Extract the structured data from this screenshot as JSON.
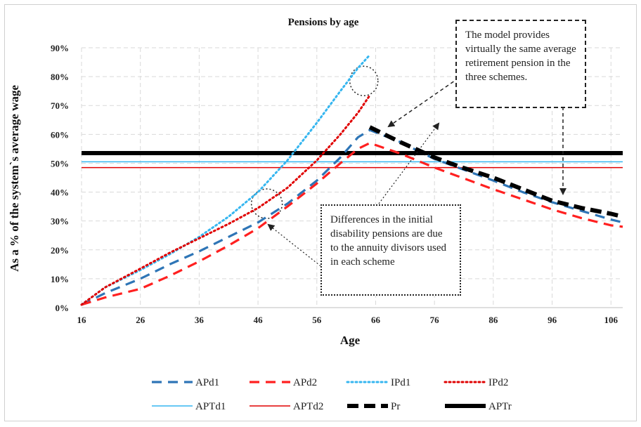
{
  "chart_data": {
    "type": "line",
    "title": "Pensions by age",
    "xlabel": "Age",
    "ylabel": "As a % of the system`s average wage",
    "xticks": [
      "16",
      "26",
      "36",
      "46",
      "56",
      "66",
      "76",
      "86",
      "96",
      "106"
    ],
    "yticks": [
      "0%",
      "10%",
      "20%",
      "30%",
      "40%",
      "50%",
      "60%",
      "70%",
      "80%",
      "90%"
    ],
    "xlim": [
      16,
      108
    ],
    "ylim": [
      0,
      90
    ],
    "grid": true,
    "legend_position": "bottom",
    "series": [
      {
        "name": "APd1",
        "color": "#2e75b6",
        "style": "dashed",
        "x": [
          16,
          20,
          26,
          31,
          36,
          41,
          46,
          51,
          56,
          60,
          63,
          65,
          70,
          76,
          80,
          86,
          91,
          96,
          101,
          106,
          108
        ],
        "y": [
          1,
          5,
          10,
          15,
          19.5,
          24.5,
          29.5,
          36,
          44,
          52,
          59,
          61.5,
          57.5,
          51.5,
          48.5,
          44,
          40,
          36.5,
          33.5,
          30.5,
          29.5
        ]
      },
      {
        "name": "APd2",
        "color": "#ff2020",
        "style": "dashed",
        "x": [
          16,
          20,
          26,
          31,
          36,
          41,
          46,
          51,
          56,
          60,
          63,
          65,
          70,
          76,
          80,
          86,
          91,
          96,
          101,
          106,
          108
        ],
        "y": [
          1,
          3.5,
          6.5,
          11,
          16,
          21.5,
          27.5,
          35,
          43,
          50,
          55,
          57,
          53.5,
          48.5,
          45.5,
          41,
          37.5,
          34,
          31,
          28.5,
          28
        ]
      },
      {
        "name": "IPd1",
        "color": "#35b6f0",
        "style": "dotted",
        "x": [
          16,
          20,
          26,
          31,
          36,
          41,
          46,
          51,
          56,
          60,
          63,
          65
        ],
        "y": [
          1,
          7,
          13,
          18.5,
          24.5,
          31.5,
          40,
          51,
          64,
          75,
          83,
          87.5
        ]
      },
      {
        "name": "IPd2",
        "color": "#e00000",
        "style": "dotted",
        "x": [
          16,
          20,
          26,
          31,
          36,
          41,
          46,
          51,
          56,
          60,
          63,
          65
        ],
        "y": [
          1,
          7,
          13.5,
          19,
          24,
          29,
          34.5,
          41.5,
          51,
          60,
          67.5,
          73.5
        ]
      },
      {
        "name": "APTd1",
        "color": "#35b6f0",
        "style": "solid-thin",
        "x": [
          16,
          108
        ],
        "y": [
          50.5,
          50.5
        ]
      },
      {
        "name": "APTd2",
        "color": "#e00000",
        "style": "solid-thin",
        "x": [
          16,
          108
        ],
        "y": [
          48.5,
          48.5
        ]
      },
      {
        "name": "Pr",
        "color": "#000000",
        "style": "dashed-thick",
        "x": [
          65,
          70,
          76,
          80,
          86,
          91,
          96,
          101,
          106,
          108
        ],
        "y": [
          62.5,
          57.5,
          52,
          49,
          45,
          41,
          37,
          34.5,
          32.5,
          31.5
        ]
      },
      {
        "name": "APTr",
        "color": "#000000",
        "style": "solid-thick",
        "x": [
          16,
          108
        ],
        "y": [
          53.5,
          53.5
        ]
      }
    ],
    "annotations": [
      "The model provides virtually the same average retirement pension in the three schemes.",
      "Differences in the initial disability pensions are due to the annuity divisors used in each scheme"
    ]
  }
}
